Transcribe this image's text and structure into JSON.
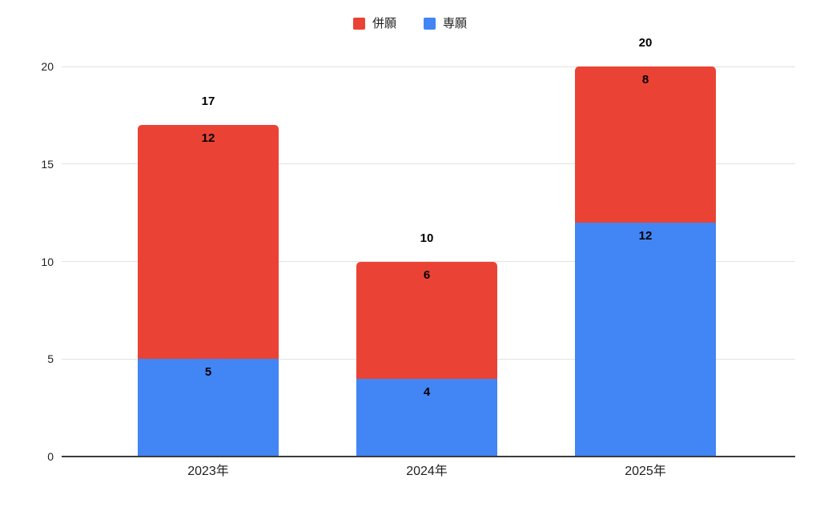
{
  "chart_data": {
    "type": "bar",
    "variant": "stacked-vertical",
    "title": "",
    "xlabel": "",
    "ylabel": "",
    "categories": [
      "2023年",
      "2024年",
      "2025年"
    ],
    "series": [
      {
        "name": "専願",
        "color": "#4285F4",
        "values": [
          5,
          4,
          12
        ]
      },
      {
        "name": "併願",
        "color": "#EA4335",
        "values": [
          12,
          6,
          8
        ]
      }
    ],
    "totals": [
      17,
      10,
      20
    ],
    "legend": [
      {
        "label": "併願",
        "color": "#EA4335"
      },
      {
        "label": "専願",
        "color": "#4285F4"
      }
    ],
    "legend_position": "top-center",
    "y_ticks": [
      0,
      5,
      10,
      15,
      20
    ],
    "ylim": [
      0,
      20
    ],
    "grid": true,
    "colors": {
      "gridline": "#e2e2e2",
      "axis_line": "#3c3c3c",
      "tick_text": "#1f1f1f",
      "data_label_text": "#000000",
      "background": "#ffffff"
    }
  }
}
